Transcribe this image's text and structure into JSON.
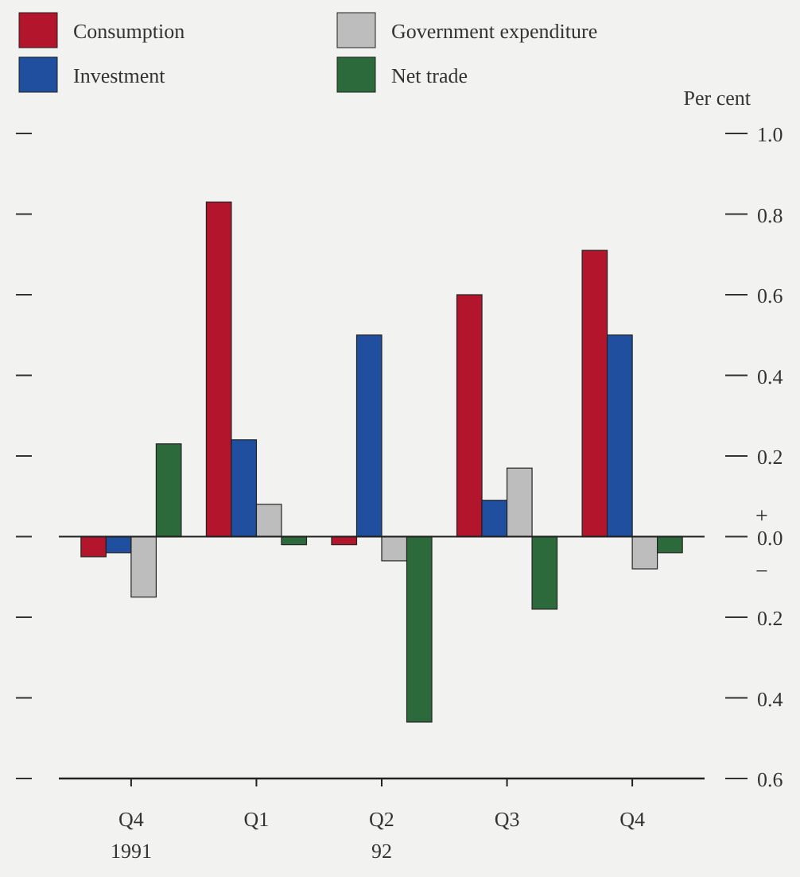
{
  "chart_data": {
    "type": "bar",
    "ylabel": "Per cent",
    "categories": [
      "Q4\n1991",
      "Q1",
      "Q2\n92",
      "Q3",
      "Q4"
    ],
    "series": [
      {
        "name": "Consumption",
        "color": "#b3152c",
        "values": [
          -0.05,
          0.83,
          -0.02,
          0.6,
          0.71
        ]
      },
      {
        "name": "Investment",
        "color": "#1f4f9e",
        "values": [
          -0.04,
          0.24,
          0.5,
          0.09,
          0.5
        ]
      },
      {
        "name": "Government expenditure",
        "color": "#bdbdbd",
        "values": [
          -0.15,
          0.08,
          -0.06,
          0.17,
          -0.08
        ]
      },
      {
        "name": "Net trade",
        "color": "#2d6a3b",
        "values": [
          0.23,
          -0.02,
          -0.46,
          -0.18,
          -0.04
        ]
      }
    ],
    "ylim": [
      -0.6,
      1.0
    ],
    "yticks": [
      {
        "value": -0.6,
        "label": "0.6"
      },
      {
        "value": -0.4,
        "label": "0.4"
      },
      {
        "value": -0.2,
        "label": "0.2"
      },
      {
        "value": 0.0,
        "label": "0.0"
      },
      {
        "value": 0.2,
        "label": "0.2"
      },
      {
        "value": 0.4,
        "label": "0.4"
      },
      {
        "value": 0.6,
        "label": "0.6"
      },
      {
        "value": 0.8,
        "label": "0.8"
      },
      {
        "value": 1.0,
        "label": "1.0"
      }
    ],
    "annotations": [
      "+",
      "−"
    ],
    "legend": "top left"
  }
}
